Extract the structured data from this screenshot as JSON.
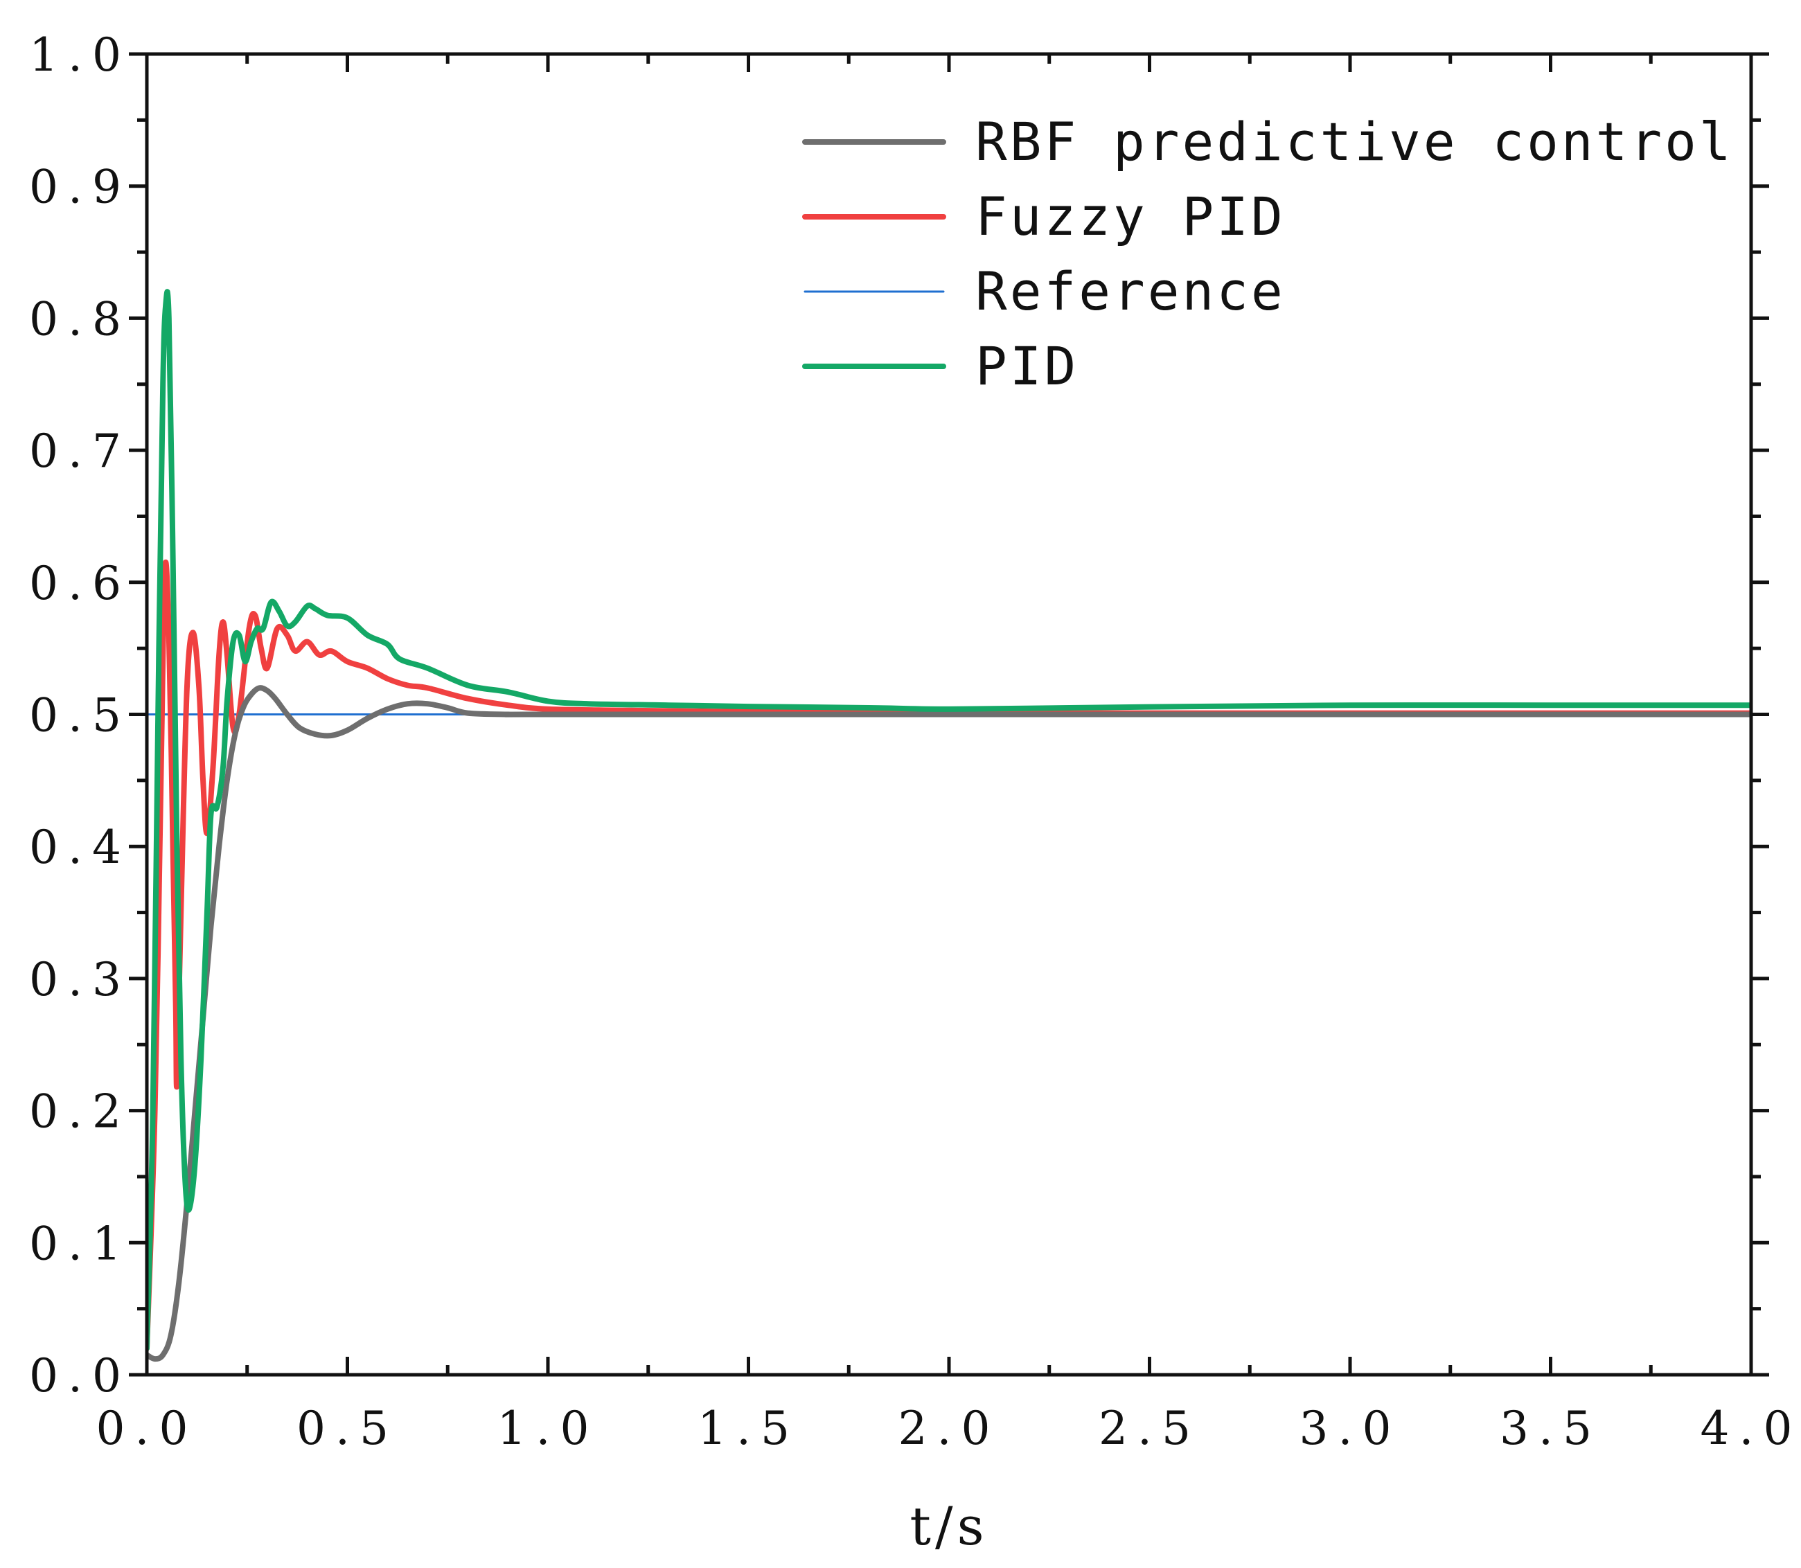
{
  "chart_data": {
    "type": "line",
    "title": "",
    "xlabel": "t/s",
    "ylabel": "",
    "xlim": [
      0,
      4.0
    ],
    "ylim": [
      0,
      1.0
    ],
    "x_ticks": [
      "0.0",
      "0.5",
      "1.0",
      "1.5",
      "2.0",
      "2.5",
      "3.0",
      "3.5",
      "4.0"
    ],
    "y_ticks": [
      "0.0",
      "0.1",
      "0.2",
      "0.3",
      "0.4",
      "0.5",
      "0.6",
      "0.7",
      "0.8",
      "0.9",
      "1.0"
    ],
    "legend_position": "top-right",
    "series": [
      {
        "name": "RBF predictive control",
        "color": "#6e6e6e",
        "points": [
          [
            0.0,
            0.015
          ],
          [
            0.02,
            0.012
          ],
          [
            0.04,
            0.015
          ],
          [
            0.06,
            0.03
          ],
          [
            0.08,
            0.07
          ],
          [
            0.1,
            0.13
          ],
          [
            0.12,
            0.2
          ],
          [
            0.14,
            0.27
          ],
          [
            0.16,
            0.34
          ],
          [
            0.18,
            0.4
          ],
          [
            0.2,
            0.45
          ],
          [
            0.22,
            0.485
          ],
          [
            0.24,
            0.505
          ],
          [
            0.26,
            0.515
          ],
          [
            0.28,
            0.52
          ],
          [
            0.3,
            0.518
          ],
          [
            0.32,
            0.512
          ],
          [
            0.35,
            0.5
          ],
          [
            0.38,
            0.49
          ],
          [
            0.42,
            0.485
          ],
          [
            0.46,
            0.484
          ],
          [
            0.5,
            0.488
          ],
          [
            0.55,
            0.497
          ],
          [
            0.6,
            0.504
          ],
          [
            0.65,
            0.508
          ],
          [
            0.7,
            0.508
          ],
          [
            0.75,
            0.505
          ],
          [
            0.8,
            0.501
          ],
          [
            0.9,
            0.5
          ],
          [
            1.0,
            0.5
          ],
          [
            2.0,
            0.5
          ],
          [
            3.0,
            0.5
          ],
          [
            4.0,
            0.5
          ]
        ]
      },
      {
        "name": "Fuzzy PID",
        "color": "#f04040",
        "points": [
          [
            0.0,
            0.02
          ],
          [
            0.02,
            0.2
          ],
          [
            0.035,
            0.45
          ],
          [
            0.045,
            0.61
          ],
          [
            0.055,
            0.56
          ],
          [
            0.065,
            0.4
          ],
          [
            0.072,
            0.28
          ],
          [
            0.075,
            0.22
          ],
          [
            0.085,
            0.35
          ],
          [
            0.1,
            0.52
          ],
          [
            0.115,
            0.562
          ],
          [
            0.13,
            0.52
          ],
          [
            0.14,
            0.45
          ],
          [
            0.15,
            0.41
          ],
          [
            0.165,
            0.46
          ],
          [
            0.18,
            0.545
          ],
          [
            0.19,
            0.57
          ],
          [
            0.2,
            0.545
          ],
          [
            0.215,
            0.49
          ],
          [
            0.23,
            0.5
          ],
          [
            0.255,
            0.565
          ],
          [
            0.27,
            0.575
          ],
          [
            0.285,
            0.55
          ],
          [
            0.3,
            0.535
          ],
          [
            0.325,
            0.565
          ],
          [
            0.35,
            0.56
          ],
          [
            0.37,
            0.548
          ],
          [
            0.4,
            0.555
          ],
          [
            0.43,
            0.545
          ],
          [
            0.46,
            0.548
          ],
          [
            0.5,
            0.54
          ],
          [
            0.55,
            0.535
          ],
          [
            0.6,
            0.527
          ],
          [
            0.65,
            0.522
          ],
          [
            0.7,
            0.52
          ],
          [
            0.8,
            0.512
          ],
          [
            0.9,
            0.507
          ],
          [
            1.0,
            0.504
          ],
          [
            1.2,
            0.503
          ],
          [
            1.5,
            0.502
          ],
          [
            2.0,
            0.501
          ],
          [
            2.5,
            0.501
          ],
          [
            3.0,
            0.501
          ],
          [
            3.5,
            0.501
          ],
          [
            4.0,
            0.501
          ]
        ]
      },
      {
        "name": "Reference",
        "color": "#1f6fd0",
        "points": [
          [
            0.0,
            0.5
          ],
          [
            4.0,
            0.5
          ]
        ]
      },
      {
        "name": "PID",
        "color": "#14a866",
        "points": [
          [
            0.0,
            0.02
          ],
          [
            0.015,
            0.2
          ],
          [
            0.03,
            0.55
          ],
          [
            0.04,
            0.75
          ],
          [
            0.047,
            0.81
          ],
          [
            0.055,
            0.8
          ],
          [
            0.065,
            0.62
          ],
          [
            0.075,
            0.4
          ],
          [
            0.085,
            0.24
          ],
          [
            0.095,
            0.15
          ],
          [
            0.105,
            0.125
          ],
          [
            0.12,
            0.16
          ],
          [
            0.135,
            0.24
          ],
          [
            0.15,
            0.35
          ],
          [
            0.16,
            0.425
          ],
          [
            0.175,
            0.43
          ],
          [
            0.19,
            0.46
          ],
          [
            0.2,
            0.51
          ],
          [
            0.215,
            0.555
          ],
          [
            0.23,
            0.56
          ],
          [
            0.245,
            0.54
          ],
          [
            0.26,
            0.555
          ],
          [
            0.275,
            0.565
          ],
          [
            0.29,
            0.565
          ],
          [
            0.31,
            0.585
          ],
          [
            0.33,
            0.578
          ],
          [
            0.35,
            0.567
          ],
          [
            0.37,
            0.57
          ],
          [
            0.4,
            0.582
          ],
          [
            0.42,
            0.58
          ],
          [
            0.45,
            0.575
          ],
          [
            0.5,
            0.573
          ],
          [
            0.55,
            0.56
          ],
          [
            0.6,
            0.553
          ],
          [
            0.63,
            0.542
          ],
          [
            0.7,
            0.535
          ],
          [
            0.8,
            0.522
          ],
          [
            0.9,
            0.517
          ],
          [
            1.0,
            0.51
          ],
          [
            1.1,
            0.508
          ],
          [
            1.3,
            0.507
          ],
          [
            1.5,
            0.506
          ],
          [
            1.8,
            0.505
          ],
          [
            2.0,
            0.504
          ],
          [
            2.3,
            0.505
          ],
          [
            2.6,
            0.506
          ],
          [
            3.0,
            0.507
          ],
          [
            3.5,
            0.507
          ],
          [
            4.0,
            0.507
          ]
        ]
      }
    ]
  }
}
